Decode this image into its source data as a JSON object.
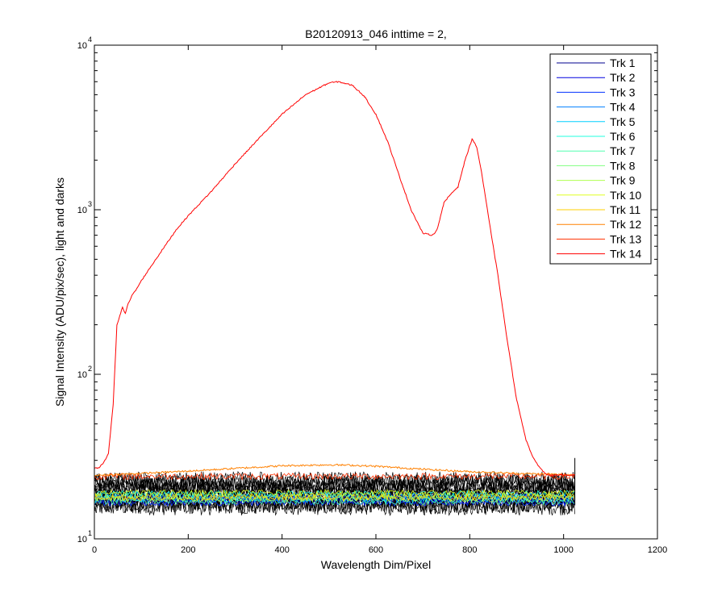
{
  "chart_data": {
    "type": "line",
    "title": "B20120913_046 inttime = 2,",
    "xlabel": "Wavelength Dim/Pixel",
    "ylabel": "Signal Intensity (ADU/pix/sec), light and darks",
    "xlim": [
      0,
      1200
    ],
    "ylim": [
      10,
      10000
    ],
    "yscale": "log",
    "xticks": [
      "0",
      "200",
      "400",
      "600",
      "800",
      "1000",
      "1200"
    ],
    "yticks": [
      {
        "value": 10,
        "base": "10",
        "exp": "1"
      },
      {
        "value": 100,
        "base": "10",
        "exp": "2"
      },
      {
        "value": 1000,
        "base": "10",
        "exp": "3"
      },
      {
        "value": 10000,
        "base": "10",
        "exp": "4"
      }
    ],
    "grid": false,
    "legend_position": "top-right",
    "series": [
      {
        "name": "Trk 1",
        "color": "#00008f",
        "style": "dark",
        "level": 17.0
      },
      {
        "name": "Trk 2",
        "color": "#0000df",
        "style": "dark",
        "level": 17.8
      },
      {
        "name": "Trk 3",
        "color": "#0030ff",
        "style": "dark",
        "level": 16.6
      },
      {
        "name": "Trk 4",
        "color": "#0080ff",
        "style": "dark",
        "level": 18.3
      },
      {
        "name": "Trk 5",
        "color": "#00cfff",
        "style": "dark",
        "level": 17.4
      },
      {
        "name": "Trk 6",
        "color": "#20ffdf",
        "style": "dark",
        "level": 18.8
      },
      {
        "name": "Trk 7",
        "color": "#50ffaf",
        "style": "dark",
        "level": 16.9
      },
      {
        "name": "Trk 8",
        "color": "#80ff80",
        "style": "dark",
        "level": 18.1
      },
      {
        "name": "Trk 9",
        "color": "#afff50",
        "style": "dark",
        "level": 17.6
      },
      {
        "name": "Trk 10",
        "color": "#dfff20",
        "style": "dark",
        "level": 19.0
      },
      {
        "name": "Trk 11",
        "color": "#ffcf00",
        "style": "dark",
        "level": 17.9
      },
      {
        "name": "Trk 12",
        "color": "#ff8000",
        "style": "curve",
        "x": [
          0,
          100,
          200,
          300,
          400,
          450,
          500,
          550,
          600,
          700,
          800,
          900,
          1024
        ],
        "y": [
          24.3,
          25.0,
          25.8,
          26.8,
          27.8,
          28.0,
          28.2,
          28.0,
          27.6,
          26.5,
          25.6,
          25.0,
          24.5
        ]
      },
      {
        "name": "Trk 13",
        "color": "#ff3000",
        "style": "dark",
        "level": 24.0
      },
      {
        "name": "Trk 14",
        "color": "#ff0000",
        "style": "curve",
        "x": [
          0,
          10,
          20,
          30,
          40,
          48,
          52,
          56,
          60,
          63,
          66,
          70,
          80,
          90,
          100,
          120,
          150,
          175,
          200,
          250,
          300,
          350,
          400,
          450,
          500,
          520,
          550,
          575,
          600,
          625,
          650,
          675,
          700,
          720,
          730,
          745,
          760,
          775,
          790,
          805,
          815,
          825,
          840,
          860,
          880,
          900,
          920,
          935,
          950,
          960,
          970,
          980,
          1024
        ],
        "y": [
          27,
          27,
          29,
          33,
          65,
          200,
          215,
          235,
          255,
          245,
          235,
          260,
          300,
          330,
          370,
          450,
          600,
          760,
          920,
          1300,
          1900,
          2700,
          3800,
          5000,
          5900,
          6000,
          5700,
          4900,
          3800,
          2600,
          1600,
          1000,
          720,
          700,
          750,
          1100,
          1250,
          1380,
          2000,
          2700,
          2400,
          1700,
          900,
          400,
          160,
          70,
          40,
          31,
          27,
          25,
          24.5,
          24.3,
          24.5
        ]
      }
    ]
  }
}
